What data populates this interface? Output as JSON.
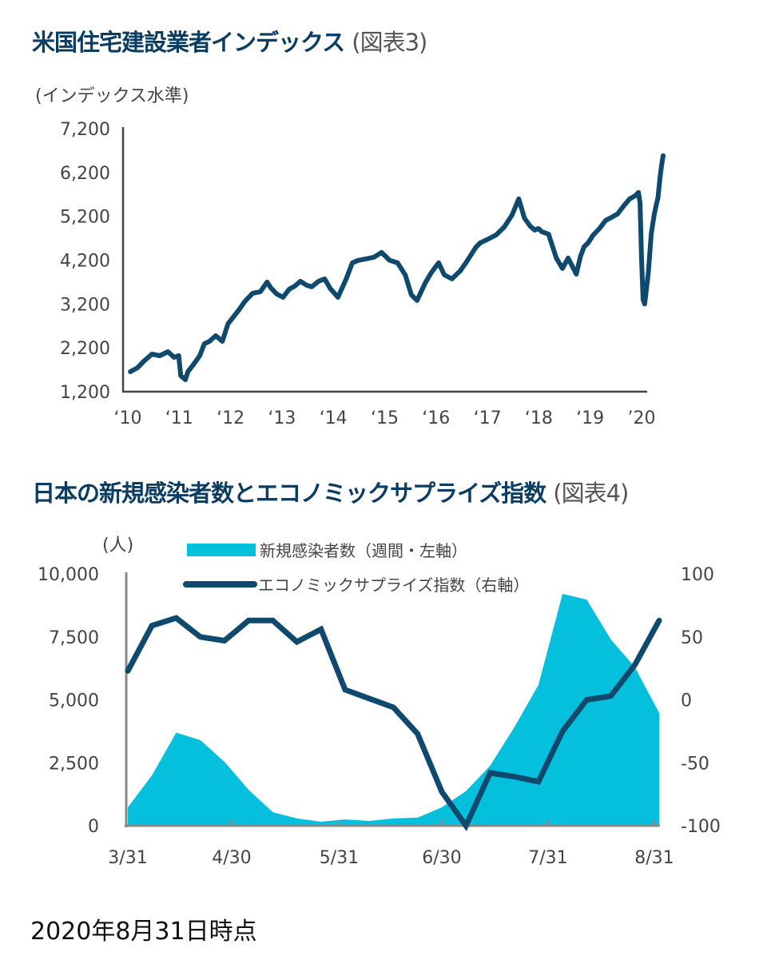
{
  "chart1": {
    "title": "米国住宅建設業者インデックス",
    "title_ref": "(図表3)",
    "unit_label": "(インデックス水準)",
    "colors": {
      "line": "#0f4a6e",
      "axis": "#444444"
    }
  },
  "chart2": {
    "title": "日本の新規感染者数とエコノミックサプライズ指数",
    "title_ref": "(図表4)",
    "unit_label": "(人)",
    "colors": {
      "area": "#05c0dd",
      "line": "#0f4a6e",
      "axis": "#888888"
    }
  },
  "footnote": "2020年8月31日時点",
  "chart_data": [
    {
      "type": "line",
      "title": "米国住宅建設業者インデックス (図表3)",
      "ylabel": "(インデックス水準)",
      "xlabel": "",
      "ylim": [
        1200,
        7200
      ],
      "yticks": [
        "7,200",
        "6,200",
        "5,200",
        "4,200",
        "3,200",
        "2,200",
        "1,200"
      ],
      "ytick_values": [
        7200,
        6200,
        5200,
        4200,
        3200,
        2200,
        1200
      ],
      "xlim": [
        2010,
        2020.15
      ],
      "xticks": [
        "‘10",
        "‘11",
        "‘12",
        "‘13",
        "‘14",
        "‘15",
        "‘16",
        "‘17",
        "‘18",
        "‘19",
        "’20"
      ],
      "xtick_values": [
        2010,
        2011,
        2012,
        2013,
        2014,
        2015,
        2016,
        2017,
        2018,
        2019,
        2020
      ],
      "grid": false,
      "legend": "none",
      "series": [
        {
          "name": "米国住宅建設業者インデックス",
          "x": [
            2010.05,
            2010.19,
            2010.31,
            2010.47,
            2010.62,
            2010.78,
            2010.9,
            2010.99,
            2011.03,
            2011.12,
            2011.17,
            2011.29,
            2011.4,
            2011.49,
            2011.59,
            2011.71,
            2011.84,
            2011.95,
            2012.05,
            2012.16,
            2012.28,
            2012.43,
            2012.58,
            2012.71,
            2012.78,
            2012.9,
            2013.02,
            2013.14,
            2013.25,
            2013.36,
            2013.48,
            2013.58,
            2013.71,
            2013.83,
            2013.94,
            2014.09,
            2014.25,
            2014.37,
            2014.48,
            2014.63,
            2014.79,
            2014.94,
            2015.1,
            2015.25,
            2015.4,
            2015.52,
            2015.63,
            2015.79,
            2015.9,
            2015.99,
            2016.05,
            2016.16,
            2016.31,
            2016.47,
            2016.58,
            2016.71,
            2016.78,
            2016.86,
            2017.02,
            2017.17,
            2017.33,
            2017.48,
            2017.61,
            2017.72,
            2017.83,
            2017.92,
            2017.99,
            2018.06,
            2018.19,
            2018.34,
            2018.46,
            2018.57,
            2018.73,
            2018.81,
            2018.88,
            2018.96,
            2019.06,
            2019.18,
            2019.3,
            2019.42,
            2019.53,
            2019.65,
            2019.77,
            2019.88,
            2019.94,
            2019.97,
            2020.0,
            2020.03,
            2020.06,
            2020.13,
            2020.19,
            2020.25,
            2020.32,
            2020.36,
            2020.39,
            2020.42
          ],
          "y": [
            1656,
            1747,
            1893,
            2057,
            2021,
            2112,
            1984,
            2021,
            1565,
            1474,
            1656,
            1839,
            2021,
            2295,
            2349,
            2477,
            2349,
            2751,
            2897,
            3062,
            3263,
            3445,
            3482,
            3701,
            3573,
            3427,
            3354,
            3536,
            3609,
            3719,
            3628,
            3592,
            3719,
            3774,
            3555,
            3354,
            3774,
            4139,
            4194,
            4230,
            4267,
            4376,
            4194,
            4139,
            3865,
            3409,
            3281,
            3683,
            3902,
            4048,
            4139,
            3865,
            3774,
            3956,
            4139,
            4376,
            4504,
            4595,
            4686,
            4777,
            4960,
            5234,
            5599,
            5161,
            4978,
            4887,
            4923,
            4850,
            4795,
            4249,
            4012,
            4249,
            3883,
            4285,
            4504,
            4595,
            4777,
            4923,
            5106,
            5179,
            5253,
            5435,
            5600,
            5673,
            5746,
            5509,
            4230,
            3300,
            3200,
            3902,
            4814,
            5270,
            5636,
            6090,
            6365,
            6585
          ]
        }
      ]
    },
    {
      "type": "area+line",
      "title": "日本の新規感染者数とエコノミックサプライズ指数 (図表4)",
      "xlabel": "",
      "ylabel": "(人)",
      "ylabel_right": "",
      "ylim": [
        0,
        10000
      ],
      "ylim_right": [
        -100,
        100
      ],
      "yticks": [
        "10,000",
        "7,500",
        "5,000",
        "2,500",
        "0"
      ],
      "ytick_values": [
        10000,
        7500,
        5000,
        2500,
        0
      ],
      "yticks_right": [
        "100",
        "50",
        "0",
        "-50",
        "-100"
      ],
      "ytick_values_right": [
        100,
        50,
        0,
        -50,
        -100
      ],
      "xticks": [
        "3/31",
        "4/30",
        "5/31",
        "6/30",
        "7/31",
        "8/31"
      ],
      "xtick_index": [
        0,
        4.3,
        8.75,
        13,
        17.4,
        21.8
      ],
      "grid": false,
      "legend": "top-center",
      "categories": [
        "3/31",
        "4/7",
        "4/14",
        "4/21",
        "4/28",
        "5/5",
        "5/12",
        "5/19",
        "5/26",
        "6/2",
        "6/9",
        "6/16",
        "6/23",
        "6/30",
        "7/7",
        "7/14",
        "7/21",
        "7/28",
        "8/4",
        "8/11",
        "8/18",
        "8/25",
        "8/31"
      ],
      "series": [
        {
          "name": "新規感染者数（週間・左軸）",
          "type": "area",
          "axis": "left",
          "values": [
            730,
            2000,
            3700,
            3400,
            2540,
            1430,
            540,
            290,
            160,
            250,
            190,
            290,
            320,
            730,
            1370,
            2380,
            3900,
            5590,
            9210,
            8980,
            7400,
            6290,
            4480
          ]
        },
        {
          "name": "エコノミックサプライズ指数（右軸）",
          "type": "line",
          "axis": "right",
          "values": [
            23,
            59,
            65,
            50,
            47,
            63,
            63,
            46,
            56,
            8,
            1,
            -6,
            -27,
            -73,
            -100,
            -58,
            -61,
            -65,
            -25,
            0,
            3,
            28,
            63
          ]
        }
      ]
    }
  ]
}
